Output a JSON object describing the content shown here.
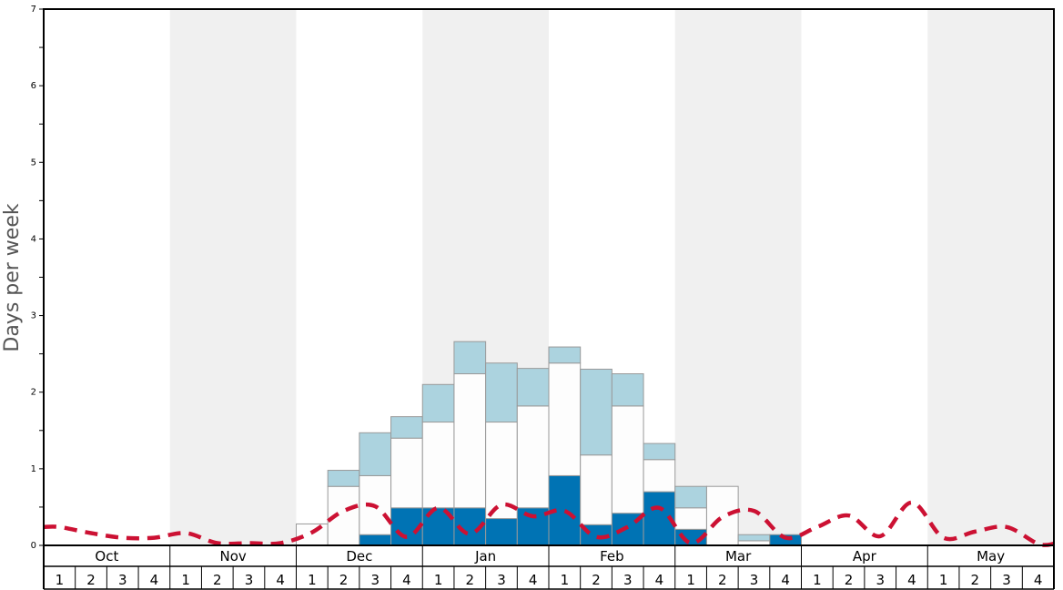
{
  "chart_data": {
    "type": "bar",
    "ylabel": "Days per week",
    "ylim": [
      0,
      7
    ],
    "yticks": [
      "0",
      "1",
      "2",
      "3",
      "4",
      "5",
      "6",
      "7"
    ],
    "months": [
      "Oct",
      "Nov",
      "Dec",
      "Jan",
      "Feb",
      "Mar",
      "Apr",
      "May"
    ],
    "week_labels": [
      "1",
      "2",
      "3",
      "4"
    ],
    "shaded_months": [
      "Nov",
      "Jan",
      "Mar",
      "May"
    ],
    "colors": {
      "dark": "#0073b4",
      "white": "#fdfdfd",
      "light": "#acd3df",
      "shade": "#f0f0f0",
      "line": "#cc1133",
      "bar_border": "#999999"
    },
    "series": [
      {
        "style": "dark",
        "values": [
          0,
          0,
          0,
          0,
          0,
          0,
          0,
          0,
          0,
          0,
          0.14,
          0.49,
          0.49,
          0.49,
          0.35,
          0.49,
          0.91,
          0.27,
          0.42,
          0.7,
          0.21,
          0,
          0,
          0.14,
          0,
          0,
          0,
          0,
          0,
          0,
          0,
          0
        ]
      },
      {
        "style": "white",
        "values": [
          0,
          0,
          0,
          0,
          0,
          0,
          0,
          0,
          0.28,
          0.77,
          0.77,
          0.91,
          1.12,
          1.75,
          1.26,
          1.33,
          1.47,
          0.91,
          1.4,
          0.42,
          0.28,
          0.77,
          0.06,
          0,
          0,
          0,
          0,
          0,
          0,
          0,
          0,
          0
        ]
      },
      {
        "style": "light",
        "values": [
          0,
          0,
          0,
          0,
          0,
          0,
          0,
          0,
          0,
          0.21,
          0.56,
          0.28,
          0.49,
          0.42,
          0.77,
          0.49,
          0.21,
          1.12,
          0.42,
          0.21,
          0.28,
          0,
          0.08,
          0,
          0,
          0,
          0,
          0,
          0,
          0,
          0,
          0
        ]
      },
      {
        "style": "line-dashed",
        "values": [
          0.24,
          0.16,
          0.1,
          0.1,
          0.16,
          0.03,
          0.03,
          0.03,
          0.17,
          0.45,
          0.51,
          0.11,
          0.49,
          0.15,
          0.53,
          0.38,
          0.45,
          0.11,
          0.24,
          0.49,
          0.03,
          0.37,
          0.45,
          0.1,
          0.24,
          0.39,
          0.12,
          0.56,
          0.1,
          0.18,
          0.24,
          0.02
        ]
      }
    ]
  }
}
